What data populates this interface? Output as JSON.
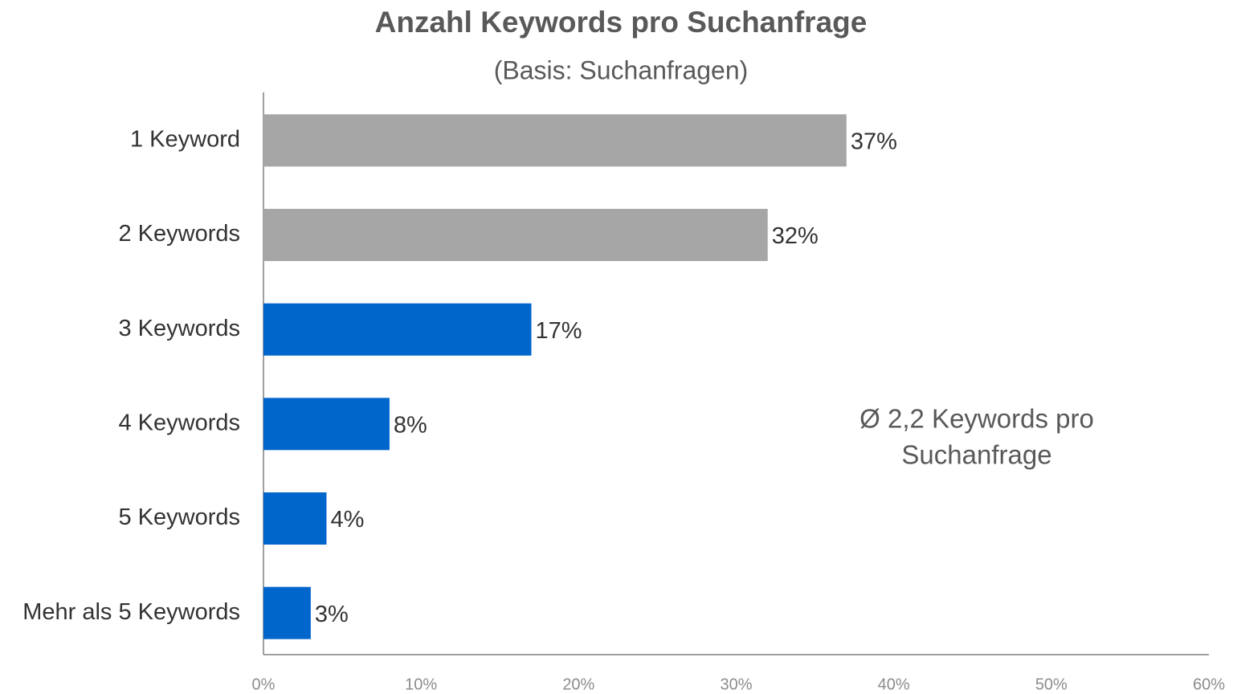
{
  "chart_data": {
    "type": "bar",
    "orientation": "horizontal",
    "title": "Anzahl Keywords pro Suchanfrage",
    "subtitle": "(Basis: Suchanfragen)",
    "categories": [
      "1 Keyword",
      "2 Keywords",
      "3 Keywords",
      "4 Keywords",
      "5 Keywords",
      "Mehr als 5 Keywords"
    ],
    "values": [
      37,
      32,
      17,
      8,
      4,
      3
    ],
    "value_labels": [
      "37%",
      "32%",
      "17%",
      "8%",
      "4%",
      "3%"
    ],
    "colors": [
      "#a6a6a6",
      "#a6a6a6",
      "#0066cc",
      "#0066cc",
      "#0066cc",
      "#0066cc"
    ],
    "xlim": [
      0,
      60
    ],
    "xticks": [
      {
        "value": 0,
        "label": "0%"
      },
      {
        "value": 10,
        "label": "10%"
      },
      {
        "value": 20,
        "label": "20%"
      },
      {
        "value": 30,
        "label": "30%"
      },
      {
        "value": 40,
        "label": "40%"
      },
      {
        "value": 50,
        "label": "50%"
      },
      {
        "value": 60,
        "label": "60%"
      }
    ],
    "annotation": [
      "Ø 2,2 Keywords pro",
      "Suchanfrage"
    ],
    "grid": false
  }
}
